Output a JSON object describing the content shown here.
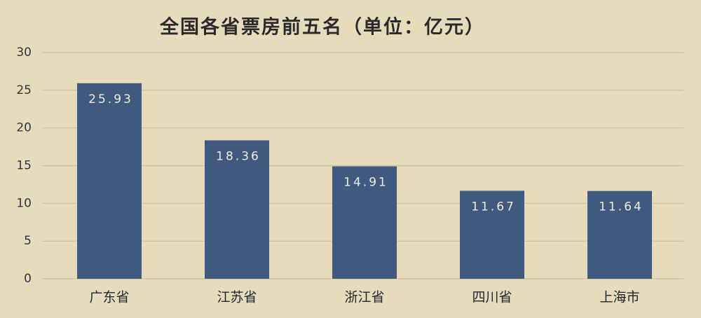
{
  "chart_data": {
    "type": "bar",
    "title": "全国各省票房前五名（单位：亿元）",
    "categories": [
      "广东省",
      "江苏省",
      "浙江省",
      "四川省",
      "上海市"
    ],
    "values": [
      25.93,
      18.36,
      14.91,
      11.67,
      11.64
    ],
    "color": "#3f5a7e",
    "ylim": [
      0,
      30
    ],
    "yticks": [
      0,
      5,
      10,
      15,
      20,
      25,
      30
    ],
    "grid": true
  }
}
